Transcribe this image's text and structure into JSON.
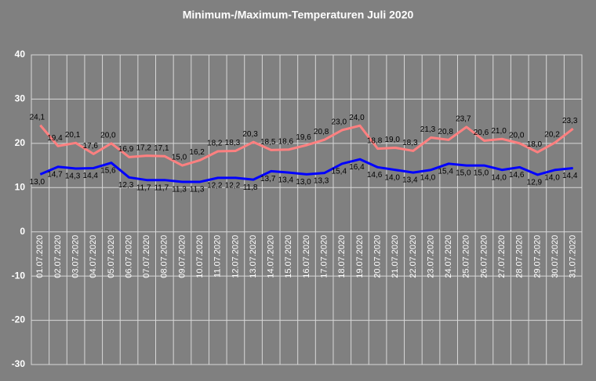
{
  "chart_data": {
    "type": "line",
    "title": "Minimum-/Maximum-Temperaturen  Juli 2020",
    "categories": [
      "01.07.2020",
      "02.07.2020",
      "03.07.2020",
      "04.07.2020",
      "05.07.2020",
      "06.07.2020",
      "07.07.2020",
      "08.07.2020",
      "09.07.2020",
      "10.07.2020",
      "11.07.2020",
      "12.07.2020",
      "13.07.2020",
      "14.07.2020",
      "15.07.2020",
      "16.07.2020",
      "17.07.2020",
      "18.07.2020",
      "19.07.2020",
      "20.07.2020",
      "21.07.2020",
      "22.07.2020",
      "23.07.2020",
      "24.07.2020",
      "25.07.2020",
      "26.07.2020",
      "27.07.2020",
      "28.07.2020",
      "29.07.2020",
      "30.07.2020",
      "31.07.2020"
    ],
    "series": [
      {
        "color": "#ff8080",
        "label_position": "above",
        "values": [
          24.1,
          19.4,
          20.1,
          17.6,
          20.0,
          16.9,
          17.2,
          17.1,
          15.0,
          16.2,
          18.2,
          18.3,
          20.3,
          18.5,
          18.6,
          19.6,
          20.8,
          23.0,
          24.0,
          18.8,
          19.0,
          18.3,
          21.3,
          20.8,
          23.7,
          20.6,
          21.0,
          20.0,
          18.0,
          20.2,
          23.3
        ],
        "value_labels": [
          "24,1",
          "19,4",
          "20,1",
          "17,6",
          "20,0",
          "16,9",
          "17,2",
          "17,1",
          "15,0",
          "16,2",
          "18,2",
          "18,3",
          "20,3",
          "18,5",
          "18,6",
          "19,6",
          "20,8",
          "23,0",
          "24,0",
          "18,8",
          "19,0",
          "18,3",
          "21,3",
          "20,8",
          "23,7",
          "20,6",
          "21,0",
          "20,0",
          "18,0",
          "20,2",
          "23,3"
        ]
      },
      {
        "color": "#0000ff",
        "label_position": "below",
        "values": [
          13.0,
          14.7,
          14.3,
          14.4,
          15.6,
          12.3,
          11.7,
          11.7,
          11.3,
          11.3,
          12.2,
          12.2,
          11.8,
          13.7,
          13.4,
          13.0,
          13.3,
          15.4,
          16.4,
          14.6,
          14.0,
          13.4,
          14.0,
          15.4,
          15.0,
          15.0,
          14.0,
          14.6,
          12.9,
          14.0,
          14.4
        ],
        "value_labels": [
          "13,0",
          "14,7",
          "14,3",
          "14,4",
          "15,6",
          "12,3",
          "11,7",
          "11,7",
          "11,3",
          "11,3",
          "12,2",
          "12,2",
          "11,8",
          "13,7",
          "13,4",
          "13,0",
          "13,3",
          "15,4",
          "16,4",
          "14,6",
          "14,0",
          "13,4",
          "14,0",
          "15,4",
          "15,0",
          "15,0",
          "14,0",
          "14,6",
          "12,9",
          "14,0",
          "14,4"
        ]
      }
    ],
    "ylim": [
      -30,
      40
    ],
    "yticks": [
      -30,
      -20,
      -10,
      0,
      10,
      20,
      30,
      40
    ],
    "grid": true
  }
}
